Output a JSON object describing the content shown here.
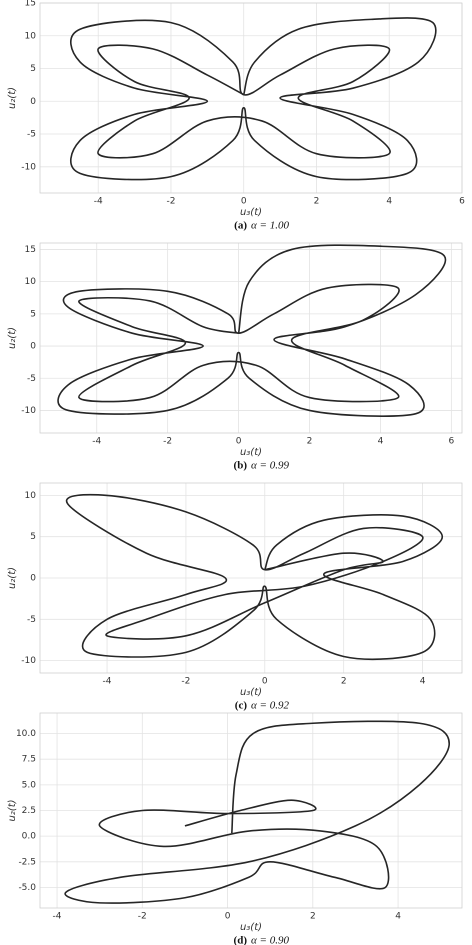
{
  "chart_data": [
    {
      "type": "line",
      "panel_label": "(a)",
      "caption": "α = 1.00",
      "xlabel": "u₃(t)",
      "ylabel": "u₂(t)",
      "color": "#262626",
      "grid": true,
      "xlim": [
        -5.6,
        6
      ],
      "ylim": [
        -14,
        15
      ],
      "xticks": [
        -4,
        -2,
        0,
        2,
        4,
        6
      ],
      "yticks": [
        -10,
        -5,
        0,
        5,
        10,
        15
      ],
      "x": [
        0,
        0.3,
        1.5,
        3.5,
        5.2,
        4.8,
        3,
        1,
        3,
        4.5,
        4.5,
        2,
        0.3,
        0,
        -0.3,
        -2,
        -4.5,
        -4.5,
        -3,
        -1,
        -3,
        -4.5,
        -4.5,
        -2,
        -0.3,
        0,
        1,
        2.5,
        4,
        3,
        1.5,
        3,
        4,
        2,
        0.5,
        -1,
        -2.5,
        -4,
        -3,
        -1.5,
        -3,
        -4,
        -2.5,
        -1,
        0
      ],
      "values": [
        1,
        6,
        11,
        12.5,
        12,
        6,
        2,
        0.5,
        -2,
        -6,
        -11,
        -11.5,
        -6,
        -1,
        -6,
        -11.5,
        -11,
        -6,
        -2,
        0,
        2,
        6,
        11,
        12,
        6,
        1,
        4,
        8,
        8,
        3,
        0.5,
        -3,
        -8,
        -8,
        -3,
        -3,
        -8,
        -8,
        -3,
        0.5,
        3,
        8,
        8,
        4,
        1
      ]
    },
    {
      "type": "line",
      "panel_label": "(b)",
      "caption": "α = 0.99",
      "xlabel": "u₃(t)",
      "ylabel": "u₂(t)",
      "color": "#262626",
      "grid": true,
      "xlim": [
        -5.6,
        6.3
      ],
      "ylim": [
        -13.5,
        16
      ],
      "xticks": [
        -4,
        -2,
        0,
        2,
        4,
        6
      ],
      "yticks": [
        -10,
        -5,
        0,
        5,
        10,
        15
      ],
      "x": [
        0,
        0.3,
        1.5,
        4,
        5.8,
        5,
        3,
        1,
        3,
        4.8,
        5,
        2,
        0.3,
        0,
        -0.3,
        -2,
        -4.8,
        -4.8,
        -3,
        -1,
        -3,
        -4.8,
        -4.5,
        -2,
        -0.3,
        0,
        1,
        2.5,
        4.5,
        3.5,
        1.5,
        3,
        4.5,
        2,
        0.5,
        -1,
        -2.5,
        -4.5,
        -3,
        -1.5,
        -3,
        -4.5,
        -2.5,
        -1,
        0
      ],
      "values": [
        2,
        10,
        15,
        15.5,
        14,
        8,
        3,
        1,
        -2,
        -6,
        -10.5,
        -10,
        -5,
        -1,
        -5,
        -10,
        -10,
        -6,
        -2,
        0,
        2,
        6,
        8.5,
        8.5,
        5,
        2,
        5,
        9,
        9,
        4,
        1,
        -3,
        -8,
        -8,
        -3,
        -3,
        -8,
        -8,
        -3,
        0.5,
        3,
        7,
        7,
        3,
        2
      ]
    },
    {
      "type": "line",
      "panel_label": "(c)",
      "caption": "α = 0.92",
      "xlabel": "u₃(t)",
      "ylabel": "u₂(t)",
      "color": "#262626",
      "grid": true,
      "xlim": [
        -5.7,
        5
      ],
      "ylim": [
        -11.5,
        11.5
      ],
      "xticks": [
        -4,
        -2,
        0,
        2,
        4
      ],
      "yticks": [
        -10,
        -5,
        0,
        5,
        10
      ],
      "x": [
        0,
        0.3,
        1.5,
        3.5,
        4.5,
        3.5,
        1.5,
        3,
        4.2,
        4,
        2,
        0.3,
        0,
        -0.3,
        -2,
        -4.5,
        -4,
        -2,
        -1,
        -3,
        -5,
        -4,
        -2,
        -0.3,
        0,
        1,
        2.5,
        4,
        3,
        1,
        -1,
        -3,
        -4,
        -2,
        0,
        2,
        3,
        2,
        0
      ],
      "values": [
        1,
        4,
        7,
        7.5,
        5,
        2,
        0.5,
        -2,
        -5,
        -9,
        -9.5,
        -5,
        -1,
        -4,
        -9,
        -9,
        -5,
        -2,
        0,
        3,
        9,
        10,
        8,
        4,
        1,
        3,
        6,
        5,
        2,
        -1,
        -2,
        -5,
        -7,
        -7,
        -3,
        1,
        2,
        3,
        1
      ]
    },
    {
      "type": "line",
      "panel_label": "(d)",
      "caption": "α = 0.90",
      "xlabel": "u₃(t)",
      "ylabel": "u₂(t)",
      "color": "#262626",
      "grid": true,
      "xlim": [
        -4.4,
        5.5
      ],
      "ylim": [
        -7,
        12
      ],
      "xticks": [
        -4,
        -2,
        0,
        2,
        4
      ],
      "yticks": [
        {
          "value": -5,
          "label": "-5.0"
        },
        -2.5,
        {
          "value": 0,
          "label": "0.0"
        },
        2.5,
        {
          "value": 5,
          "label": "5.0"
        },
        7.5,
        {
          "value": 10,
          "label": "10.0"
        }
      ],
      "x": [
        0.1,
        0.2,
        0.6,
        2,
        4.5,
        5.2,
        4.5,
        3,
        0.5,
        -2.5,
        -3.8,
        -3,
        -1,
        0.5,
        1,
        2.5,
        3.7,
        3.5,
        2.2,
        0.5,
        -1.5,
        -3,
        -2,
        0,
        2,
        1.5,
        0.3,
        -1
      ],
      "values": [
        0.3,
        6,
        10,
        11,
        11,
        9,
        5,
        1,
        -2.5,
        -4,
        -5.5,
        -6.5,
        -6,
        -4,
        -2.5,
        -4,
        -5,
        -1,
        0.5,
        0.5,
        -1,
        1,
        2.5,
        2.2,
        2.5,
        3.5,
        2.5,
        1
      ]
    }
  ]
}
